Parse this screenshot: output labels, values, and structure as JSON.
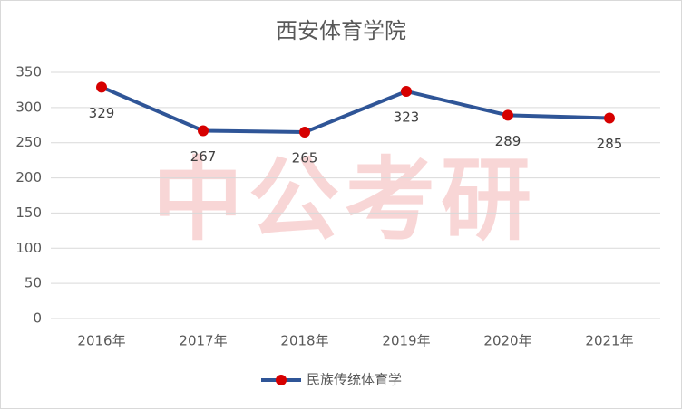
{
  "chart_data": {
    "type": "line",
    "title": "西安体育学院",
    "watermark": "中公考研",
    "categories": [
      "2016年",
      "2017年",
      "2018年",
      "2019年",
      "2020年",
      "2021年"
    ],
    "series": [
      {
        "name": "民族传统体育学",
        "color": "#2f5597",
        "marker_color": "#d60000",
        "values": [
          329,
          267,
          265,
          323,
          289,
          285
        ]
      }
    ],
    "ylim": [
      0,
      350
    ],
    "yticks": [
      0,
      50,
      100,
      150,
      200,
      250,
      300,
      350
    ],
    "grid": true,
    "legend": "bottom"
  }
}
